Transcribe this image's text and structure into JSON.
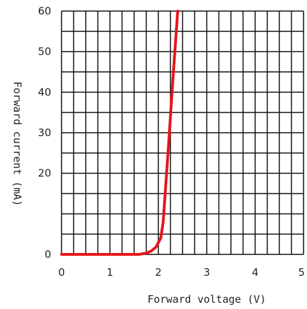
{
  "chart_data": {
    "type": "line",
    "title": "",
    "xlabel": "Forward voltage (V)",
    "ylabel": "Forward current (mA)",
    "xlim": [
      0,
      5
    ],
    "ylim": [
      0,
      60
    ],
    "x_ticks": [
      0,
      1,
      2,
      3,
      4,
      5
    ],
    "y_ticks": [
      0,
      10,
      20,
      30,
      40,
      50,
      60
    ],
    "x_tick_labels": [
      "0",
      "1",
      "2",
      "3",
      "4",
      "5"
    ],
    "y_tick_labels": [
      "0",
      "",
      "20",
      "30",
      "40",
      "50",
      "60"
    ],
    "grid": true,
    "grid_x_step": 0.25,
    "grid_y_step": 5,
    "colors": {
      "series": "#e8141b",
      "grid": "#111111",
      "text": "#222222"
    },
    "series": [
      {
        "x": [
          0,
          1.6,
          1.75,
          1.85,
          1.95,
          2.05,
          2.1,
          2.2,
          2.3,
          2.4
        ],
        "y": [
          0,
          0,
          0.3,
          0.8,
          1.8,
          4,
          8,
          25,
          43,
          60
        ]
      }
    ]
  }
}
